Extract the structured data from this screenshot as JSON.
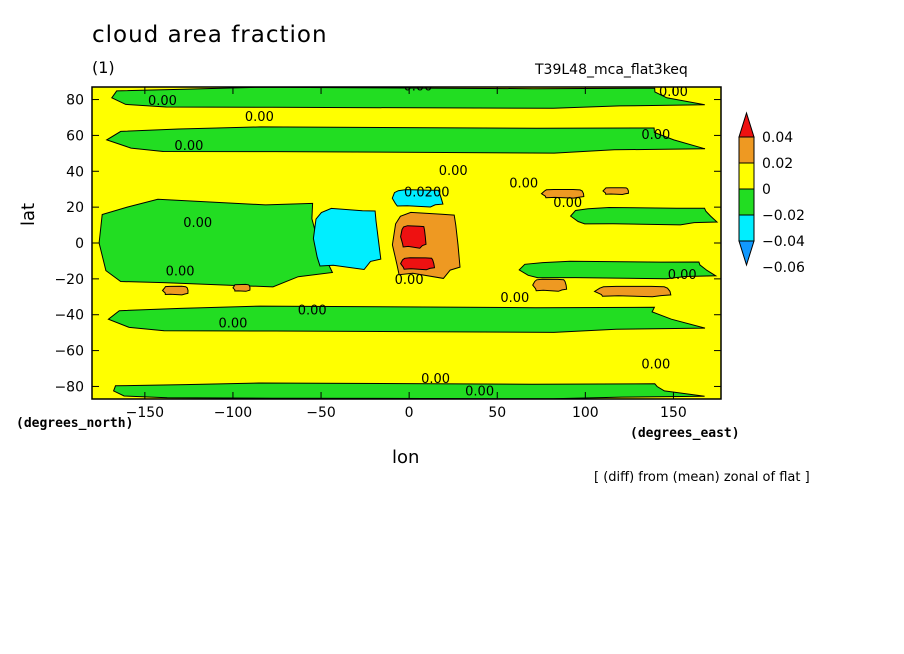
{
  "header": {
    "title": "cloud area fraction",
    "units": "(1)",
    "run_id": "T39L48_mca_flat3keq"
  },
  "axes": {
    "ylabel": "lat",
    "ylabel_unit": "(degrees_north)",
    "xlabel": "lon",
    "xlabel_unit": "(degrees_east)"
  },
  "footer": {
    "note": "[ (diff) from (mean) zonal of flat ]"
  },
  "colors": {
    "red": "#ee1111",
    "orange": "#ee9922",
    "yellow": "#ffff00",
    "green": "#22dd22",
    "cyan": "#00eeff",
    "blue": "#1199ff"
  },
  "chart_data": {
    "type": "heatmap",
    "subtype": "filled-contour map",
    "x": {
      "ticks": [
        -150,
        -100,
        -50,
        0,
        50,
        100,
        150
      ],
      "range": [
        -180,
        177
      ]
    },
    "y": {
      "ticks": [
        -80,
        -60,
        -40,
        -20,
        0,
        20,
        40,
        60,
        80
      ],
      "range": [
        -87,
        87
      ]
    },
    "colorbar": {
      "levels": [
        "0.04",
        "0.02",
        "0",
        "−0.02",
        "−0.04",
        "−0.06"
      ],
      "bins": [
        {
          "range": "> 0.04",
          "color": "#ee1111"
        },
        {
          "range": "0.02 to 0.04",
          "color": "#ee9922"
        },
        {
          "range": "0 to 0.02",
          "color": "#ffff00"
        },
        {
          "range": "-0.02 to 0",
          "color": "#22dd22"
        },
        {
          "range": "-0.04 to -0.02",
          "color": "#00eeff"
        },
        {
          "range": "< -0.04",
          "color": "#1199ff"
        }
      ]
    },
    "background_value_bin": "0 to 0.02",
    "regions": [
      {
        "bin": "-0.02 to 0",
        "lon": [
          -180,
          177
        ],
        "lat": [
          -87,
          -78
        ]
      },
      {
        "bin": "-0.02 to 0",
        "lon": [
          -180,
          177
        ],
        "lat": [
          75,
          87
        ]
      },
      {
        "bin": "-0.02 to 0",
        "lon": [
          -180,
          -40
        ],
        "lat": [
          -25,
          25
        ]
      },
      {
        "bin": "-0.02 to 0",
        "lon": [
          -180,
          177
        ],
        "lat": [
          -50,
          -35
        ]
      },
      {
        "bin": "-0.02 to 0",
        "lon": [
          -180,
          177
        ],
        "lat": [
          50,
          65
        ]
      },
      {
        "bin": "-0.02 to 0",
        "lon": [
          60,
          177
        ],
        "lat": [
          -20,
          -10
        ]
      },
      {
        "bin": "-0.02 to 0",
        "lon": [
          90,
          177
        ],
        "lat": [
          10,
          20
        ]
      },
      {
        "bin": "-0.04 to -0.02",
        "lon": [
          -55,
          -15
        ],
        "lat": [
          -15,
          20
        ]
      },
      {
        "bin": "-0.04 to -0.02",
        "lon": [
          -10,
          20
        ],
        "lat": [
          20,
          30
        ]
      },
      {
        "bin": "0.02 to 0.04",
        "lon": [
          -10,
          30
        ],
        "lat": [
          -20,
          18
        ]
      },
      {
        "bin": "> 0.04",
        "lon": [
          -5,
          10
        ],
        "lat": [
          -3,
          10
        ]
      },
      {
        "bin": "> 0.04",
        "lon": [
          -5,
          15
        ],
        "lat": [
          -15,
          -8
        ]
      },
      {
        "bin": "0.02 to 0.04",
        "lon": [
          70,
          90
        ],
        "lat": [
          -27,
          -20
        ]
      },
      {
        "bin": "0.02 to 0.04",
        "lon": [
          105,
          150
        ],
        "lat": [
          -30,
          -24
        ]
      },
      {
        "bin": "0.02 to 0.04",
        "lon": [
          75,
          100
        ],
        "lat": [
          25,
          30
        ]
      },
      {
        "bin": "0.02 to 0.04",
        "lon": [
          110,
          125
        ],
        "lat": [
          27,
          31
        ]
      },
      {
        "bin": "0.02 to 0.04",
        "lon": [
          -140,
          -125
        ],
        "lat": [
          -29,
          -24
        ]
      },
      {
        "bin": "0.02 to 0.04",
        "lon": [
          -100,
          -90
        ],
        "lat": [
          -27,
          -23
        ]
      }
    ],
    "contour_labels": [
      {
        "text": "0.00",
        "lon": -140,
        "lat": 77
      },
      {
        "text": "0.00",
        "lon": 5,
        "lat": 85
      },
      {
        "text": "0.00",
        "lon": 150,
        "lat": 82
      },
      {
        "text": "0.00",
        "lon": -85,
        "lat": 68
      },
      {
        "text": "0.00",
        "lon": -125,
        "lat": 52
      },
      {
        "text": "0.00",
        "lon": 25,
        "lat": 38
      },
      {
        "text": "0.00",
        "lon": 140,
        "lat": 58
      },
      {
        "text": "0.0200",
        "lon": 10,
        "lat": 26
      },
      {
        "text": "0.00",
        "lon": 65,
        "lat": 31
      },
      {
        "text": "0.00",
        "lon": 90,
        "lat": 20
      },
      {
        "text": "0.00",
        "lon": -120,
        "lat": 9
      },
      {
        "text": "0.00",
        "lon": -130,
        "lat": -18
      },
      {
        "text": "0.00",
        "lon": 0,
        "lat": -23
      },
      {
        "text": "0.00",
        "lon": 60,
        "lat": -33
      },
      {
        "text": "0.00",
        "lon": 155,
        "lat": -20
      },
      {
        "text": "0.00",
        "lon": -100,
        "lat": -47
      },
      {
        "text": "0.00",
        "lon": -55,
        "lat": -40
      },
      {
        "text": "0.00",
        "lon": 15,
        "lat": -78
      },
      {
        "text": "0.00",
        "lon": 40,
        "lat": -85
      },
      {
        "text": "0.00",
        "lon": 140,
        "lat": -70
      }
    ]
  }
}
